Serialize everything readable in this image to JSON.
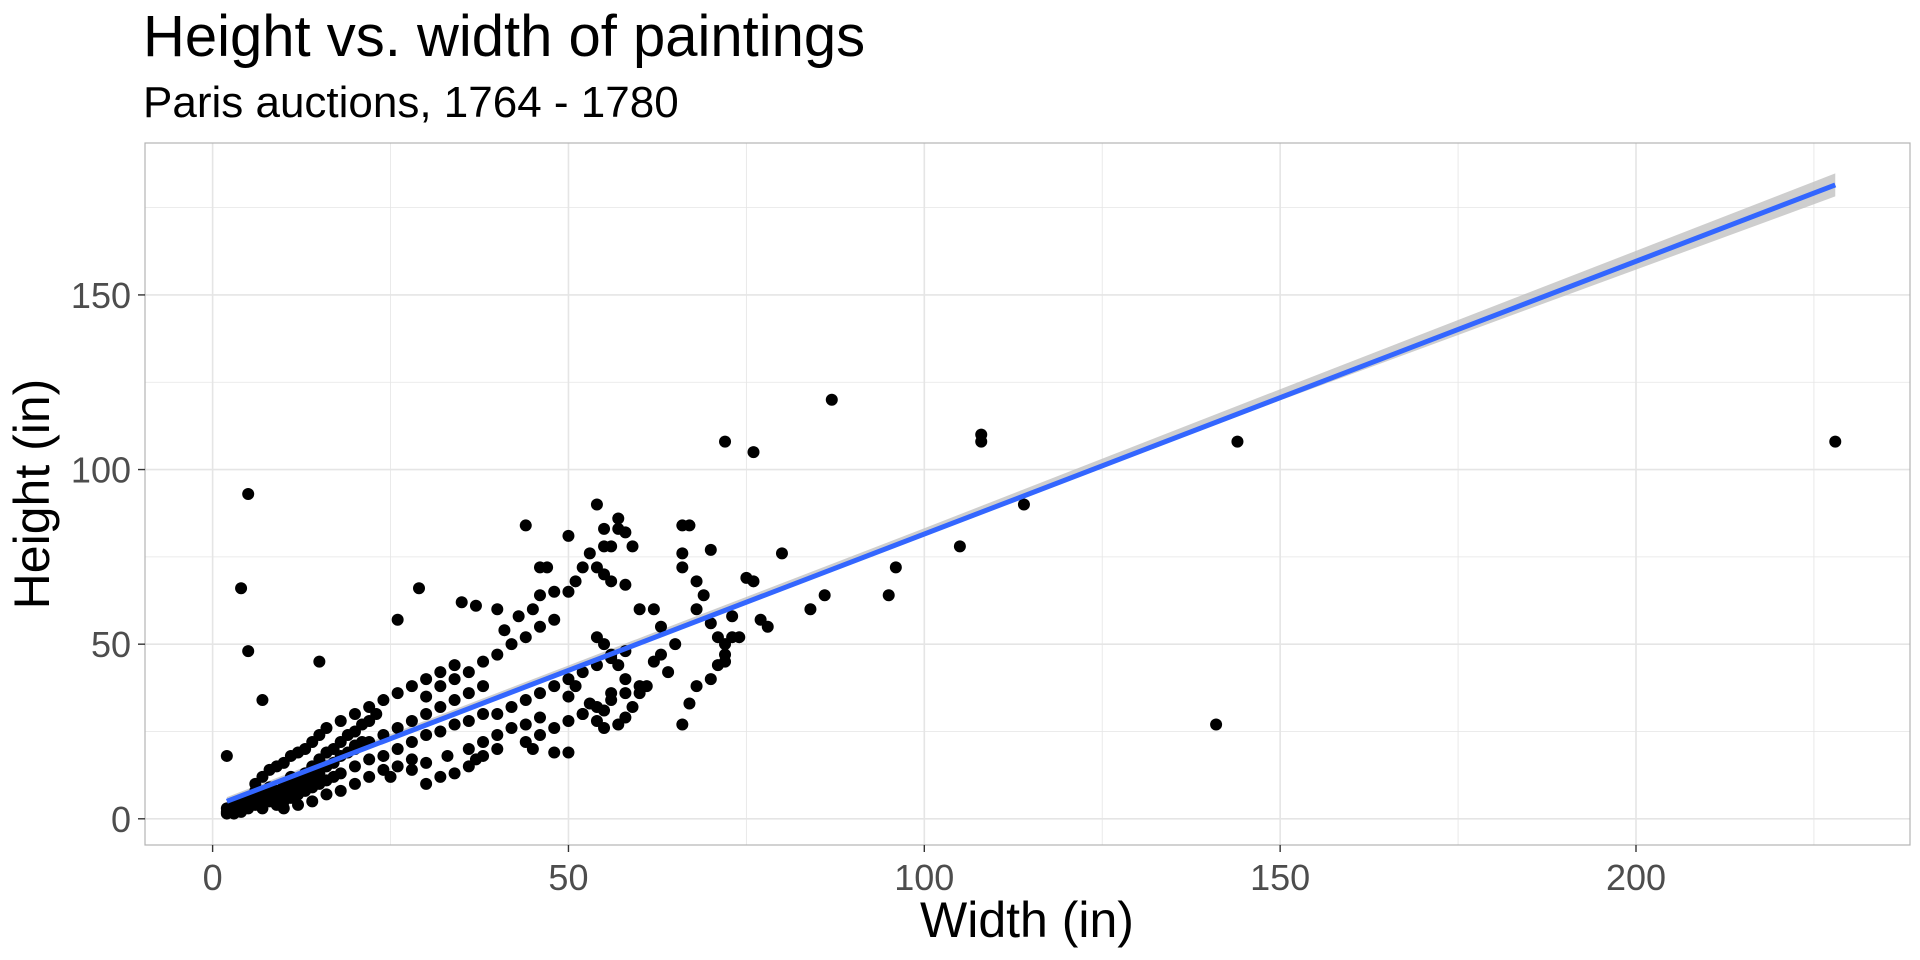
{
  "chart_data": {
    "type": "scatter",
    "title": "Height vs. width of paintings",
    "subtitle": "Paris auctions, 1764 - 1780",
    "xlabel": "Width (in)",
    "ylabel": "Height (in)",
    "xlim": [
      -9.5,
      238.5
    ],
    "ylim": [
      -7.5,
      193.5
    ],
    "x_ticks": [
      0,
      50,
      100,
      150,
      200
    ],
    "y_ticks": [
      0,
      50,
      100,
      150
    ],
    "x_tick_labels": [
      "0",
      "50",
      "100",
      "150",
      "200"
    ],
    "y_tick_labels": [
      "0",
      "50",
      "100",
      "150"
    ],
    "grid": true,
    "legend": "none",
    "colors": {
      "points": "#000000",
      "fit_line": "#3366ff",
      "confidence_band": "#bebebe",
      "grid": "#e5e5e5",
      "panel_border": "#b3b3b3"
    },
    "trend_line": {
      "method": "linear",
      "x": [
        2,
        228
      ],
      "y": [
        5,
        181.5
      ],
      "se_band": [
        [
          2,
          3.8,
          6.2
        ],
        [
          50,
          42.5,
          43.9
        ],
        [
          100,
          81.2,
          83.2
        ],
        [
          150,
          119.8,
          123.0
        ],
        [
          228,
          178.2,
          184.8
        ]
      ]
    },
    "points": [
      [
        2,
        3
      ],
      [
        2,
        2
      ],
      [
        3,
        2
      ],
      [
        2,
        18
      ],
      [
        3,
        4
      ],
      [
        4,
        2
      ],
      [
        5,
        3
      ],
      [
        6,
        4
      ],
      [
        7,
        3
      ],
      [
        8,
        5
      ],
      [
        4,
        5
      ],
      [
        5,
        6
      ],
      [
        6,
        8
      ],
      [
        7,
        7
      ],
      [
        8,
        9
      ],
      [
        9,
        8
      ],
      [
        10,
        10
      ],
      [
        11,
        12
      ],
      [
        12,
        11
      ],
      [
        13,
        13
      ],
      [
        6,
        10
      ],
      [
        7,
        12
      ],
      [
        8,
        14
      ],
      [
        9,
        15
      ],
      [
        10,
        16
      ],
      [
        11,
        18
      ],
      [
        12,
        19
      ],
      [
        13,
        20
      ],
      [
        14,
        22
      ],
      [
        15,
        24
      ],
      [
        9,
        4
      ],
      [
        10,
        5
      ],
      [
        11,
        6
      ],
      [
        12,
        7
      ],
      [
        13,
        8
      ],
      [
        14,
        9
      ],
      [
        15,
        10
      ],
      [
        16,
        11
      ],
      [
        17,
        12
      ],
      [
        18,
        13
      ],
      [
        10,
        3
      ],
      [
        12,
        4
      ],
      [
        14,
        5
      ],
      [
        16,
        7
      ],
      [
        18,
        8
      ],
      [
        20,
        10
      ],
      [
        22,
        12
      ],
      [
        24,
        14
      ],
      [
        26,
        15
      ],
      [
        28,
        17
      ],
      [
        14,
        15
      ],
      [
        15,
        17
      ],
      [
        16,
        19
      ],
      [
        17,
        20
      ],
      [
        18,
        22
      ],
      [
        19,
        24
      ],
      [
        20,
        25
      ],
      [
        21,
        27
      ],
      [
        22,
        28
      ],
      [
        23,
        30
      ],
      [
        16,
        26
      ],
      [
        18,
        28
      ],
      [
        20,
        30
      ],
      [
        22,
        32
      ],
      [
        24,
        34
      ],
      [
        26,
        36
      ],
      [
        28,
        38
      ],
      [
        30,
        40
      ],
      [
        32,
        42
      ],
      [
        34,
        44
      ],
      [
        20,
        20
      ],
      [
        22,
        22
      ],
      [
        24,
        24
      ],
      [
        26,
        26
      ],
      [
        28,
        28
      ],
      [
        30,
        30
      ],
      [
        32,
        32
      ],
      [
        34,
        34
      ],
      [
        36,
        36
      ],
      [
        38,
        38
      ],
      [
        20,
        15
      ],
      [
        22,
        17
      ],
      [
        24,
        18
      ],
      [
        26,
        20
      ],
      [
        28,
        22
      ],
      [
        30,
        24
      ],
      [
        32,
        25
      ],
      [
        34,
        27
      ],
      [
        36,
        28
      ],
      [
        38,
        30
      ],
      [
        25,
        12
      ],
      [
        28,
        14
      ],
      [
        30,
        16
      ],
      [
        33,
        18
      ],
      [
        36,
        20
      ],
      [
        38,
        22
      ],
      [
        40,
        24
      ],
      [
        42,
        26
      ],
      [
        44,
        27
      ],
      [
        46,
        29
      ],
      [
        30,
        35
      ],
      [
        32,
        38
      ],
      [
        34,
        40
      ],
      [
        36,
        42
      ],
      [
        38,
        45
      ],
      [
        40,
        47
      ],
      [
        42,
        50
      ],
      [
        44,
        52
      ],
      [
        46,
        55
      ],
      [
        48,
        57
      ],
      [
        40,
        30
      ],
      [
        42,
        32
      ],
      [
        44,
        34
      ],
      [
        46,
        36
      ],
      [
        48,
        38
      ],
      [
        50,
        40
      ],
      [
        52,
        42
      ],
      [
        54,
        44
      ],
      [
        56,
        46
      ],
      [
        58,
        48
      ],
      [
        40,
        20
      ],
      [
        44,
        22
      ],
      [
        46,
        24
      ],
      [
        48,
        26
      ],
      [
        50,
        28
      ],
      [
        52,
        30
      ],
      [
        54,
        32
      ],
      [
        56,
        34
      ],
      [
        58,
        36
      ],
      [
        60,
        38
      ],
      [
        30,
        10
      ],
      [
        32,
        12
      ],
      [
        34,
        13
      ],
      [
        36,
        15
      ],
      [
        37,
        17
      ],
      [
        38,
        18
      ],
      [
        45,
        20
      ],
      [
        48,
        19
      ],
      [
        50,
        19
      ],
      [
        55,
        26
      ],
      [
        26,
        57
      ],
      [
        29,
        66
      ],
      [
        35,
        62
      ],
      [
        37,
        61
      ],
      [
        40,
        60
      ],
      [
        41,
        54
      ],
      [
        43,
        58
      ],
      [
        45,
        60
      ],
      [
        46,
        64
      ],
      [
        46,
        72
      ],
      [
        47,
        72
      ],
      [
        48,
        65
      ],
      [
        50,
        65
      ],
      [
        51,
        68
      ],
      [
        52,
        72
      ],
      [
        54,
        90
      ],
      [
        55,
        83
      ],
      [
        57,
        86
      ],
      [
        57,
        83
      ],
      [
        58,
        82
      ],
      [
        55,
        78
      ],
      [
        56,
        78
      ],
      [
        59,
        78
      ],
      [
        44,
        84
      ],
      [
        50,
        81
      ],
      [
        53,
        76
      ],
      [
        54,
        72
      ],
      [
        55,
        70
      ],
      [
        56,
        68
      ],
      [
        58,
        67
      ],
      [
        60,
        60
      ],
      [
        62,
        60
      ],
      [
        63,
        55
      ],
      [
        65,
        50
      ],
      [
        66,
        84
      ],
      [
        67,
        84
      ],
      [
        66,
        76
      ],
      [
        66,
        72
      ],
      [
        68,
        68
      ],
      [
        68,
        60
      ],
      [
        69,
        64
      ],
      [
        70,
        56
      ],
      [
        71,
        52
      ],
      [
        72,
        50
      ],
      [
        70,
        77
      ],
      [
        72,
        45
      ],
      [
        73,
        58
      ],
      [
        74,
        52
      ],
      [
        75,
        69
      ],
      [
        76,
        68
      ],
      [
        77,
        57
      ],
      [
        78,
        55
      ],
      [
        80,
        76
      ],
      [
        66,
        27
      ],
      [
        67,
        33
      ],
      [
        68,
        38
      ],
      [
        70,
        40
      ],
      [
        71,
        44
      ],
      [
        72,
        47
      ],
      [
        73,
        52
      ],
      [
        62,
        45
      ],
      [
        63,
        47
      ],
      [
        64,
        42
      ],
      [
        61,
        38
      ],
      [
        60,
        36
      ],
      [
        58,
        40
      ],
      [
        57,
        44
      ],
      [
        56,
        47
      ],
      [
        55,
        50
      ],
      [
        54,
        52
      ],
      [
        50,
        35
      ],
      [
        51,
        38
      ],
      [
        52,
        30
      ],
      [
        53,
        33
      ],
      [
        54,
        28
      ],
      [
        55,
        31
      ],
      [
        56,
        36
      ],
      [
        57,
        27
      ],
      [
        58,
        29
      ],
      [
        59,
        32
      ],
      [
        2,
        1.5
      ],
      [
        3,
        1.5
      ],
      [
        4,
        3
      ],
      [
        5,
        4
      ],
      [
        6,
        6
      ],
      [
        7,
        5
      ],
      [
        8,
        7
      ],
      [
        9,
        6
      ],
      [
        10,
        8
      ],
      [
        11,
        9
      ],
      [
        12,
        9
      ],
      [
        13,
        10
      ],
      [
        14,
        12
      ],
      [
        15,
        13
      ],
      [
        16,
        15
      ],
      [
        17,
        16
      ],
      [
        18,
        18
      ],
      [
        19,
        19
      ],
      [
        20,
        21
      ],
      [
        21,
        22
      ],
      [
        4,
        66
      ],
      [
        5,
        48
      ],
      [
        5,
        93
      ],
      [
        7,
        34
      ],
      [
        15,
        45
      ],
      [
        72,
        108
      ],
      [
        76,
        105
      ],
      [
        87,
        120
      ],
      [
        84,
        60
      ],
      [
        86,
        64
      ],
      [
        95,
        64
      ],
      [
        96,
        72
      ],
      [
        105,
        78
      ],
      [
        108,
        110
      ],
      [
        108,
        108
      ],
      [
        114,
        90
      ],
      [
        141,
        27
      ],
      [
        144,
        108
      ],
      [
        228,
        108
      ]
    ]
  }
}
